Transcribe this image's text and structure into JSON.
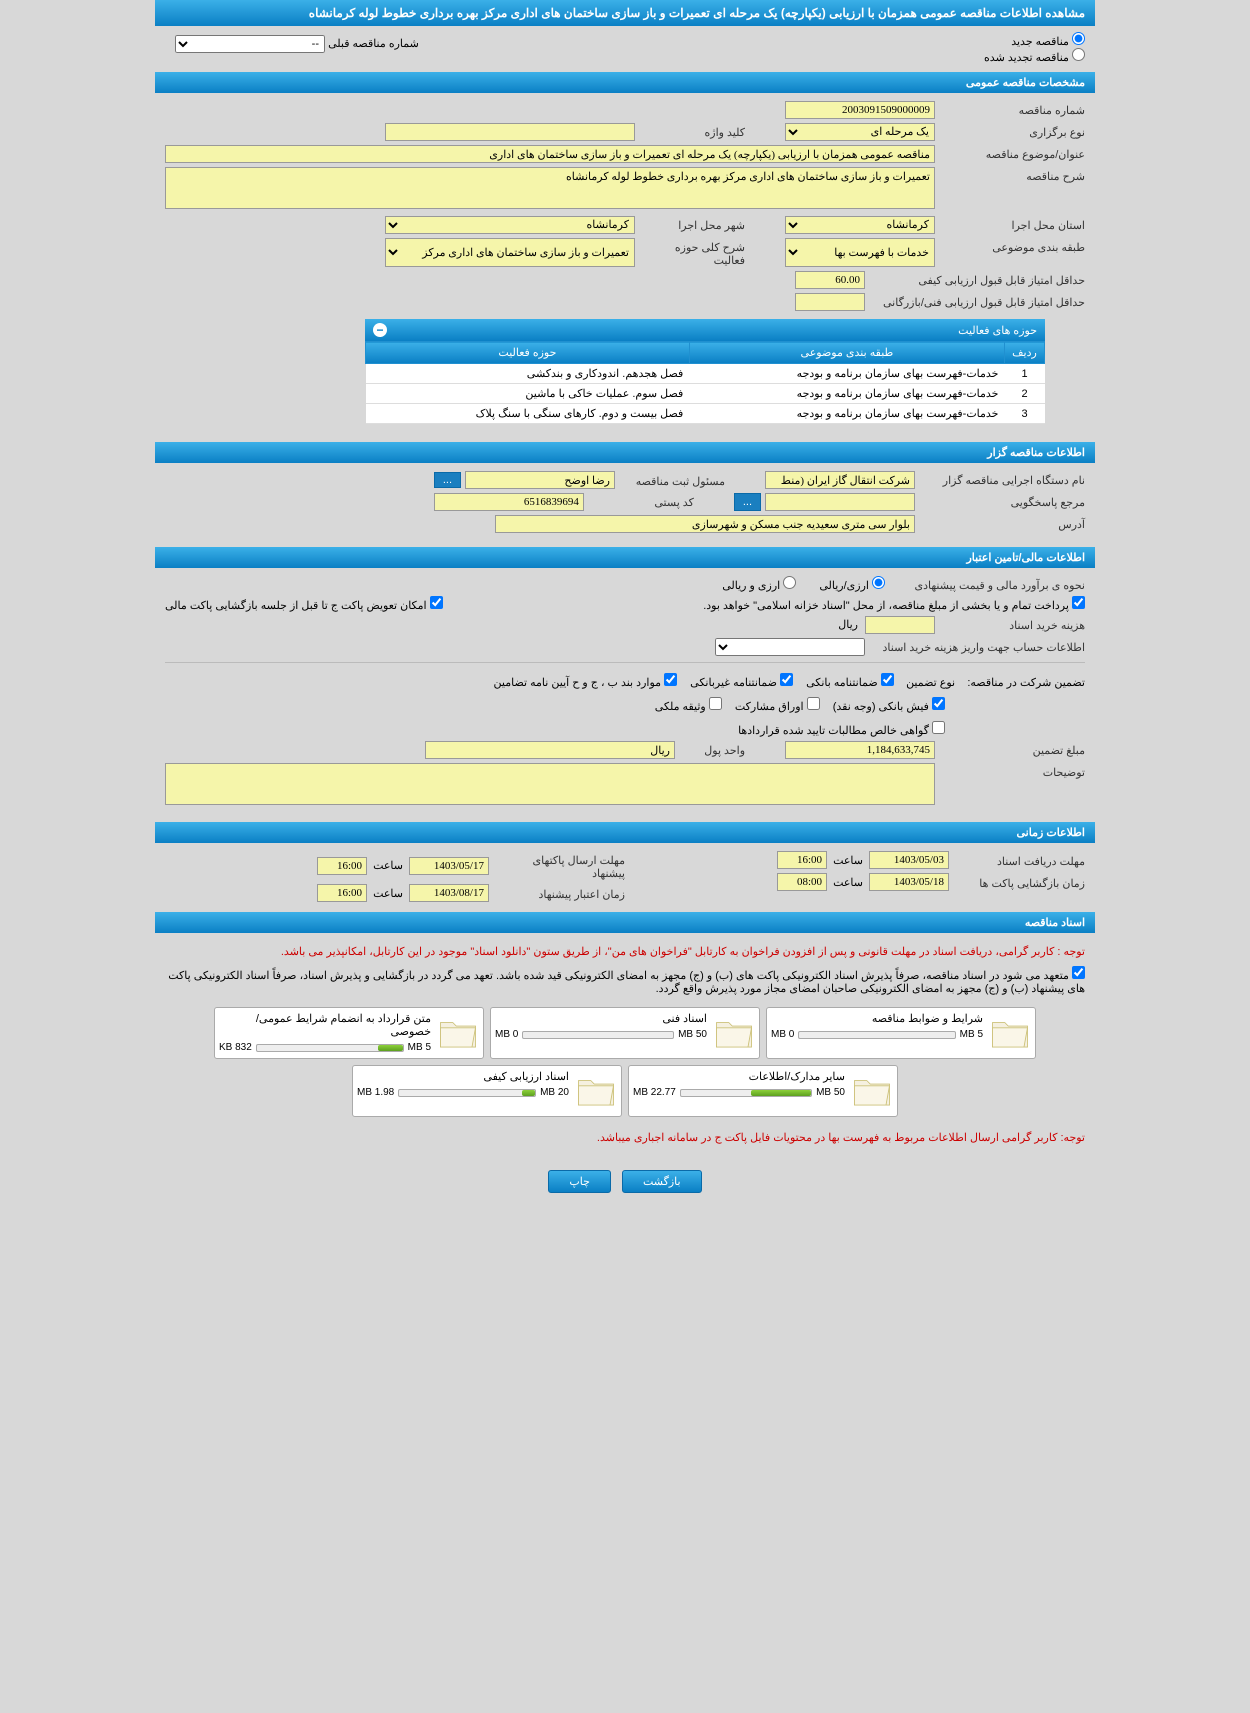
{
  "header": {
    "title": "مشاهده اطلاعات مناقصه عمومی همزمان با ارزیابی (یکپارچه) یک مرحله ای تعمیرات و باز سازی ساختمان های اداری مرکز بهره برداری خطوط لوله کرمانشاه"
  },
  "radios": {
    "new_tender": "مناقصه جدید",
    "renewed_tender": "مناقصه تجدید شده",
    "prev_label": "شماره مناقصه قبلی",
    "prev_value": "--"
  },
  "sections": {
    "general": "مشخصات مناقصه عمومی",
    "holder": "اطلاعات مناقصه گزار",
    "financial": "اطلاعات مالی/تامین اعتبار",
    "timing": "اطلاعات زمانی",
    "docs": "اسناد مناقصه"
  },
  "general": {
    "tender_no_label": "شماره مناقصه",
    "tender_no": "2003091509000009",
    "holding_type_label": "نوع برگزاری",
    "holding_type": "یک مرحله ای",
    "keyword_label": "کلید واژه",
    "keyword": "",
    "subject_label": "عنوان/موضوع مناقصه",
    "subject": "مناقصه عمومی همزمان با ارزیابی (یکپارچه) یک مرحله ای تعمیرات و باز سازی ساختمان های اداری",
    "desc_label": "شرح مناقصه",
    "desc": "تعمیرات و باز سازی ساختمان های اداری مرکز بهره برداری خطوط لوله کرمانشاه",
    "exec_province_label": "استان محل اجرا",
    "exec_province": "کرمانشاه",
    "exec_city_label": "شهر محل اجرا",
    "exec_city": "کرمانشاه",
    "subject_class_label": "طبقه بندی موضوعی",
    "subject_class": "خدمات با فهرست بها",
    "activity_desc_label": "شرح کلی حوزه فعالیت",
    "activity_desc": "تعمیرات و باز سازی ساختمان های اداری مرکز",
    "min_qual_label": "حداقل امتیاز قابل قبول ارزیابی کیفی",
    "min_qual": "60.00",
    "min_tech_label": "حداقل امتیاز قابل قبول ارزیابی فنی/بازرگانی",
    "min_tech": ""
  },
  "activities": {
    "title": "حوزه های فعالیت",
    "th_idx": "ردیف",
    "th_subject": "طبقه بندی موضوعی",
    "th_domain": "حوزه فعالیت",
    "rows": [
      {
        "i": "1",
        "s": "خدمات-فهرست بهای سازمان برنامه و بودجه",
        "d": "فصل هجدهم. اندودکاری و بندکشی"
      },
      {
        "i": "2",
        "s": "خدمات-فهرست بهای سازمان برنامه و بودجه",
        "d": "فصل سوم. عملیات خاکی با ماشین"
      },
      {
        "i": "3",
        "s": "خدمات-فهرست بهای سازمان برنامه و بودجه",
        "d": "فصل بیست و دوم. کارهای سنگی با سنگ پلاک"
      }
    ]
  },
  "holder": {
    "org_label": "نام دستگاه اجرایی مناقصه گزار",
    "org": "شرکت انتقال گاز ایران (منط",
    "registrar_label": "مسئول ثبت مناقصه",
    "registrar": "رضا اوضح",
    "respond_label": "مرجع پاسخگویی",
    "respond": "",
    "postal_label": "کد پستی",
    "postal": "6516839694",
    "address_label": "آدرس",
    "address": "بلوار سی متری سعیدیه جنب مسکن و شهرسازی"
  },
  "financial": {
    "estimate_label": "نحوه ی برآورد مالی و قیمت پیشنهادی",
    "opt_rial": "ارزی/ریالی",
    "opt_both": "ارزی و ریالی",
    "note": "پرداخت تمام و یا بخشی از مبلغ مناقصه، از محل \"اسناد خزانه اسلامی\" خواهد بود.",
    "swap_note": "امکان تعویض پاکت ج تا قبل از جلسه بازگشایی پاکت مالی",
    "doc_cost_label": "هزینه خرید اسناد",
    "doc_cost": "",
    "currency": "ریال",
    "account_label": "اطلاعات حساب جهت واریز هزینه خرید اسناد",
    "guarantee_header": "تضمین شرکت در مناقصه:",
    "guarantee_type_label": "نوع تضمین",
    "gt_bank": "ضمانتنامه بانکی",
    "gt_nonbank": "ضمانتنامه غیربانکی",
    "gt_cases": "موارد بند ب ، ج و ح آیین نامه تضامین",
    "gt_cash": "فیش بانکی (وجه نقد)",
    "gt_shares": "اوراق مشارکت",
    "gt_prop": "وثیقه ملکی",
    "gt_receiv": "گواهی خالص مطالبات تایید شده قراردادها",
    "guarantee_amount_label": "مبلغ تضمین",
    "guarantee_amount": "1,184,633,745",
    "unit_label": "واحد پول",
    "unit": "ریال",
    "remarks_label": "توضیحات",
    "remarks": ""
  },
  "timing": {
    "doc_recv_label": "مهلت دریافت اسناد",
    "doc_recv_date": "1403/05/03",
    "time_label": "ساعت",
    "doc_recv_time": "16:00",
    "bid_send_label": "مهلت ارسال پاکتهای پیشنهاد",
    "bid_send_date": "1403/05/17",
    "bid_send_time": "16:00",
    "open_label": "زمان بازگشایی پاکت ها",
    "open_date": "1403/05/18",
    "open_time": "08:00",
    "valid_label": "زمان اعتبار پیشنهاد",
    "valid_date": "1403/08/17",
    "valid_time": "16:00"
  },
  "docs": {
    "notice1": "توجه : کاربر گرامی، دریافت اسناد در مهلت قانونی و پس از افزودن فراخوان به کارتابل \"فراخوان های من\"، از طریق ستون \"دانلود اسناد\" موجود در این کارتابل، امکانپذیر می باشد.",
    "commit": "متعهد می شود در اسناد مناقصه، صرفاً پذیرش اسناد الکترونیکی پاکت های (ب) و (ج) مجهز به امضای الکترونیکی قید شده باشد. تعهد می گردد در بازگشایی و پذیرش اسناد، صرفاً اسناد الکترونیکی پاکت های پیشنهاد (ب) و (ج) مجهز به امضای الکترونیکی صاحبان امضای مجاز مورد پذیرش واقع گردد.",
    "cards": [
      {
        "title": "شرایط و ضوابط مناقصه",
        "used": "0 MB",
        "cap": "5 MB",
        "pct": 0
      },
      {
        "title": "اسناد فنی",
        "used": "0 MB",
        "cap": "50 MB",
        "pct": 0
      },
      {
        "title": "متن قرارداد به انضمام شرایط عمومی/خصوصی",
        "used": "832 KB",
        "cap": "5 MB",
        "pct": 17
      },
      {
        "title": "سایر مدارک/اطلاعات",
        "used": "22.77 MB",
        "cap": "50 MB",
        "pct": 46
      },
      {
        "title": "اسناد ارزیابی کیفی",
        "used": "1.98 MB",
        "cap": "20 MB",
        "pct": 10
      }
    ],
    "notice2": "توجه: کاربر گرامی ارسال اطلاعات مربوط به فهرست بها در محتویات فایل پاکت ج در سامانه اجباری میباشد."
  },
  "buttons": {
    "back": "بازگشت",
    "print": "چاپ",
    "dots": "..."
  }
}
